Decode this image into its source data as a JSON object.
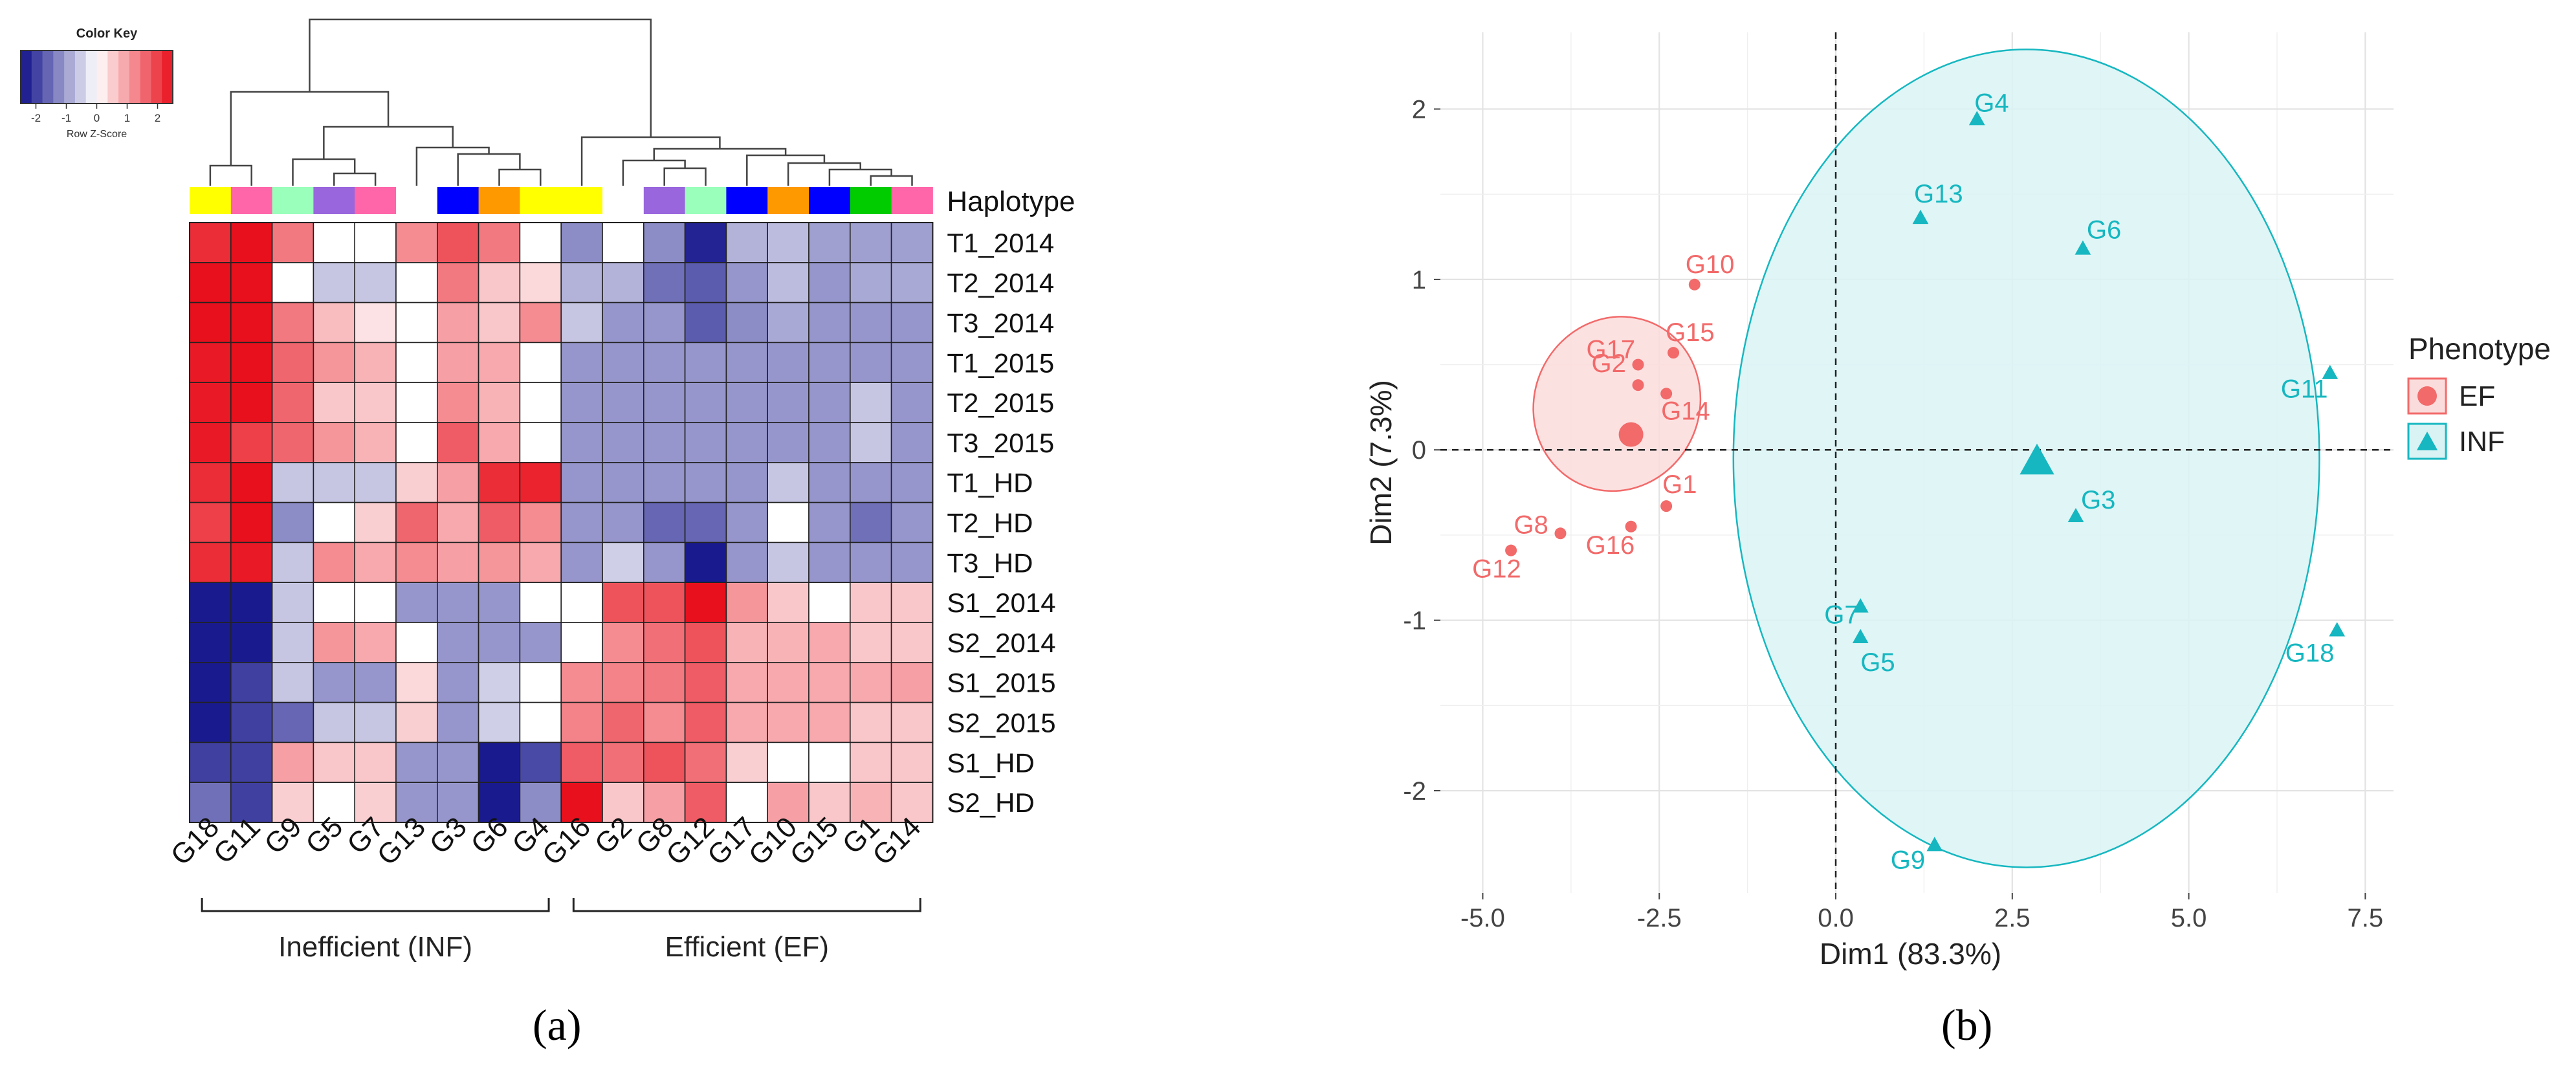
{
  "colors": {
    "pos": "#e8101c",
    "neg": "#10108a",
    "ef": "#f26a6a",
    "inf": "#16b7c0",
    "ef_fill": "#fbdcdc",
    "inf_fill": "#d9f3f5",
    "grid": "#e3e3e3",
    "bg": "#ffffff"
  },
  "heatmap": {
    "color_key_title": "Color Key",
    "color_key_label": "Row Z-Score",
    "color_key_ticks": [
      "-2",
      "-1",
      "0",
      "1",
      "2"
    ],
    "haplotype_label": "Haplotype",
    "columns": [
      "G18",
      "G11",
      "G9",
      "G5",
      "G7",
      "G13",
      "G3",
      "G6",
      "G4",
      "G16",
      "G2",
      "G8",
      "G12",
      "G17",
      "G10",
      "G15",
      "G1",
      "G14"
    ],
    "haplotype_colors": [
      "#ffff00",
      "#ff66aa",
      "#99ffbb",
      "#9966dd",
      "#ff66aa",
      "#ffffff",
      "#0000ff",
      "#ff9900",
      "#ffff00",
      "#ffff00",
      "#ffffff",
      "#9966dd",
      "#99ffbb",
      "#0000ff",
      "#ff9900",
      "#0000ff",
      "#00cc00",
      "#ff66aa"
    ],
    "rows": [
      "T1_2014",
      "T2_2014",
      "T3_2014",
      "T1_2015",
      "T2_2015",
      "T3_2015",
      "T1_HD",
      "T2_HD",
      "T3_HD",
      "S1_2014",
      "S2_2014",
      "S1_2015",
      "S2_2015",
      "S1_HD",
      "S2_HD"
    ],
    "values": [
      [
        2.2,
        2.5,
        1.4,
        0.0,
        0.0,
        1.2,
        1.8,
        1.4,
        0.0,
        -1.2,
        0.0,
        -1.2,
        -2.3,
        -0.8,
        -0.7,
        -1.0,
        -1.0,
        -1.0
      ],
      [
        2.5,
        2.6,
        0.0,
        -0.6,
        -0.6,
        0.0,
        1.4,
        0.6,
        0.4,
        -0.8,
        -0.8,
        -1.5,
        -1.7,
        -1.1,
        -0.7,
        -1.1,
        -0.9,
        -0.9
      ],
      [
        2.5,
        2.5,
        1.4,
        0.7,
        0.3,
        0.0,
        1.0,
        0.6,
        1.2,
        -0.6,
        -1.1,
        -1.1,
        -1.7,
        -1.2,
        -0.9,
        -1.1,
        -1.1,
        -1.1
      ],
      [
        2.4,
        2.5,
        1.6,
        1.1,
        0.8,
        0.0,
        1.0,
        0.9,
        0.0,
        -1.1,
        -1.1,
        -1.1,
        -1.1,
        -1.1,
        -1.1,
        -1.1,
        -1.1,
        -1.1
      ],
      [
        2.4,
        2.5,
        1.6,
        0.6,
        0.6,
        0.0,
        1.2,
        0.8,
        0.0,
        -1.1,
        -1.1,
        -1.1,
        -1.1,
        -1.1,
        -1.1,
        -1.1,
        -0.6,
        -1.1
      ],
      [
        2.4,
        2.0,
        1.6,
        1.1,
        0.8,
        0.0,
        1.7,
        0.9,
        0.0,
        -1.1,
        -1.1,
        -1.1,
        -1.1,
        -1.1,
        -1.1,
        -1.1,
        -0.6,
        -1.1
      ],
      [
        2.2,
        2.6,
        -0.6,
        -0.6,
        -0.6,
        0.5,
        1.0,
        2.2,
        2.3,
        -1.1,
        -1.1,
        -1.1,
        -1.1,
        -1.1,
        -0.6,
        -1.1,
        -1.1,
        -1.1
      ],
      [
        2.0,
        2.5,
        -1.2,
        0.0,
        0.5,
        1.6,
        0.9,
        1.7,
        1.2,
        -1.1,
        -1.1,
        -1.6,
        -1.6,
        -1.1,
        0.0,
        -1.1,
        -1.5,
        -1.1
      ],
      [
        2.2,
        2.4,
        -0.6,
        1.2,
        0.9,
        1.2,
        1.0,
        1.1,
        0.9,
        -1.1,
        -0.5,
        -1.1,
        -2.4,
        -1.1,
        -0.6,
        -1.1,
        -1.1,
        -1.1
      ],
      [
        -2.4,
        -2.4,
        -0.6,
        0.0,
        0.0,
        -1.1,
        -1.1,
        -1.1,
        0.0,
        0.0,
        1.8,
        1.8,
        2.5,
        1.1,
        0.6,
        0.0,
        0.6,
        0.6
      ],
      [
        -2.4,
        -2.4,
        -0.6,
        1.1,
        0.9,
        0.0,
        -1.1,
        -1.1,
        -1.1,
        0.0,
        1.2,
        1.5,
        1.8,
        0.8,
        0.8,
        0.9,
        0.6,
        0.6
      ],
      [
        -2.4,
        -2.0,
        -0.6,
        -1.1,
        -1.1,
        0.4,
        -1.1,
        -0.5,
        0.0,
        1.2,
        1.3,
        1.4,
        1.7,
        0.9,
        0.9,
        0.9,
        0.9,
        1.0
      ],
      [
        -2.4,
        -2.0,
        -1.6,
        -0.6,
        -0.6,
        0.5,
        -1.1,
        -0.5,
        0.0,
        1.3,
        1.6,
        1.2,
        1.7,
        0.9,
        0.9,
        0.9,
        0.6,
        0.6
      ],
      [
        -2.0,
        -2.0,
        1.0,
        0.6,
        0.6,
        -1.1,
        -1.1,
        -2.4,
        -1.9,
        1.7,
        1.5,
        1.8,
        1.5,
        0.5,
        0.0,
        0.0,
        0.6,
        0.6
      ],
      [
        -1.5,
        -2.0,
        0.5,
        0.0,
        0.5,
        -1.1,
        -1.1,
        -2.4,
        -1.2,
        2.5,
        0.6,
        1.0,
        1.7,
        0.0,
        1.0,
        0.6,
        0.8,
        0.6
      ]
    ],
    "group_inefficient": "Inefficient (INF)",
    "group_efficient": "Efficient (EF)"
  },
  "chart_data": {
    "type": "scatter",
    "xlabel": "Dim1 (83.3%)",
    "ylabel": "Dim2 (7.3%)",
    "xlim": [
      -5.6,
      7.9
    ],
    "ylim": [
      -2.6,
      2.45
    ],
    "xticks": [
      -5.0,
      -2.5,
      0.0,
      2.5,
      5.0,
      7.5
    ],
    "xtick_labels": [
      "-5.0",
      "-2.5",
      "0.0",
      "2.5",
      "5.0",
      "7.5"
    ],
    "yticks": [
      -2,
      -1,
      0,
      1,
      2
    ],
    "ytick_labels": [
      "-2",
      "-1",
      "0",
      "1",
      "2"
    ],
    "legend": {
      "title": "Phenotype",
      "position": "right",
      "items": [
        "EF",
        "INF"
      ]
    },
    "series": [
      {
        "name": "EF",
        "marker": "circle",
        "points": [
          {
            "label": "G10",
            "x": -2.0,
            "y": 0.97
          },
          {
            "label": "G15",
            "x": -2.3,
            "y": 0.57
          },
          {
            "label": "G17",
            "x": -2.8,
            "y": 0.5
          },
          {
            "label": "G2",
            "x": -2.8,
            "y": 0.38
          },
          {
            "label": "G14",
            "x": -2.4,
            "y": 0.33
          },
          {
            "label": "G1",
            "x": -2.4,
            "y": -0.33
          },
          {
            "label": "G16",
            "x": -2.9,
            "y": -0.45
          },
          {
            "label": "G8",
            "x": -3.9,
            "y": -0.49
          },
          {
            "label": "G12",
            "x": -4.6,
            "y": -0.59
          }
        ],
        "centroid": {
          "x": -2.9,
          "y": 0.09
        },
        "ellipse": {
          "cx": -3.1,
          "cy": 0.27,
          "rx": 1.25,
          "ry": 0.78,
          "angle_deg": 64
        }
      },
      {
        "name": "INF",
        "marker": "triangle",
        "points": [
          {
            "label": "G4",
            "x": 2.0,
            "y": 1.94
          },
          {
            "label": "G13",
            "x": 1.2,
            "y": 1.36
          },
          {
            "label": "G6",
            "x": 3.5,
            "y": 1.18
          },
          {
            "label": "G11",
            "x": 7.0,
            "y": 0.45
          },
          {
            "label": "G3",
            "x": 3.4,
            "y": -0.39
          },
          {
            "label": "G7",
            "x": 0.35,
            "y": -0.92
          },
          {
            "label": "G5",
            "x": 0.35,
            "y": -1.1
          },
          {
            "label": "G18",
            "x": 7.1,
            "y": -1.06
          },
          {
            "label": "G9",
            "x": 1.4,
            "y": -2.32
          }
        ],
        "centroid": {
          "x": 2.85,
          "y": -0.07
        },
        "ellipse": {
          "cx": 2.7,
          "cy": -0.05,
          "rx": 4.15,
          "ry": 2.4,
          "angle_deg": 0
        }
      }
    ]
  },
  "panel_labels": {
    "a": "(a)",
    "b": "(b)"
  }
}
